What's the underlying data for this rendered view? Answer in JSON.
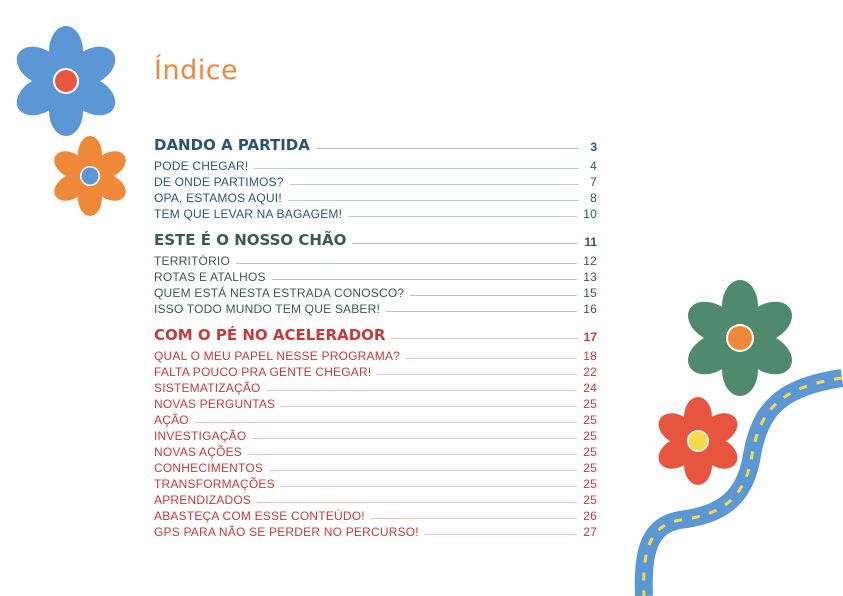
{
  "page_title": "Índice",
  "colors": {
    "title": "#f0883a",
    "section_1": "#2b5577",
    "section_2": "#3a5a52",
    "section_3": "#c8393a",
    "flower_blue": "#5b97d4",
    "flower_orange": "#f0883a",
    "flower_green": "#4f8a6c",
    "flower_red": "#e8553f",
    "road": "#5b97d4",
    "road_lines": "#f5d94a"
  },
  "sections": [
    {
      "heading": "DANDO A PARTIDA",
      "page": "3",
      "items": [
        {
          "label": "PODE CHEGAR!",
          "page": "4"
        },
        {
          "label": "DE ONDE PARTIMOS?",
          "page": "7"
        },
        {
          "label": "OPA, ESTAMOS AQUI!",
          "page": "8"
        },
        {
          "label": "TEM QUE LEVAR NA BAGAGEM!",
          "page": "10"
        }
      ]
    },
    {
      "heading": "ESTE É O NOSSO CHÃO",
      "page": "11",
      "items": [
        {
          "label": "TERRITÓRIO",
          "page": "12"
        },
        {
          "label": "ROTAS E ATALHOS",
          "page": "13"
        },
        {
          "label": "QUEM ESTÁ NESTA ESTRADA CONOSCO?",
          "page": "15"
        },
        {
          "label": "ISSO TODO MUNDO TEM QUE SABER!",
          "page": "16"
        }
      ]
    },
    {
      "heading": "COM O PÉ NO ACELERADOR",
      "page": "17",
      "items": [
        {
          "label": "QUAL O MEU PAPEL NESSE PROGRAMA?",
          "page": "18"
        },
        {
          "label": "FALTA POUCO PRA GENTE CHEGAR!",
          "page": "22"
        },
        {
          "label": "SISTEMATIZAÇÃO",
          "page": "24"
        },
        {
          "label": "NOVAS PERGUNTAS",
          "page": "25"
        },
        {
          "label": "AÇÃO",
          "page": "25"
        },
        {
          "label": "INVESTIGAÇÃO",
          "page": "25"
        },
        {
          "label": "NOVAS AÇÕES",
          "page": "25"
        },
        {
          "label": "CONHECIMENTOS",
          "page": "25"
        },
        {
          "label": "TRANSFORMAÇÕES",
          "page": "25"
        },
        {
          "label": "APRENDIZADOS",
          "page": "25"
        },
        {
          "label": "ABASTEÇA COM ESSE CONTEÚDO!",
          "page": "26"
        },
        {
          "label": "GPS PARA NÃO SE PERDER NO PERCURSO!",
          "page": "27"
        }
      ]
    }
  ]
}
